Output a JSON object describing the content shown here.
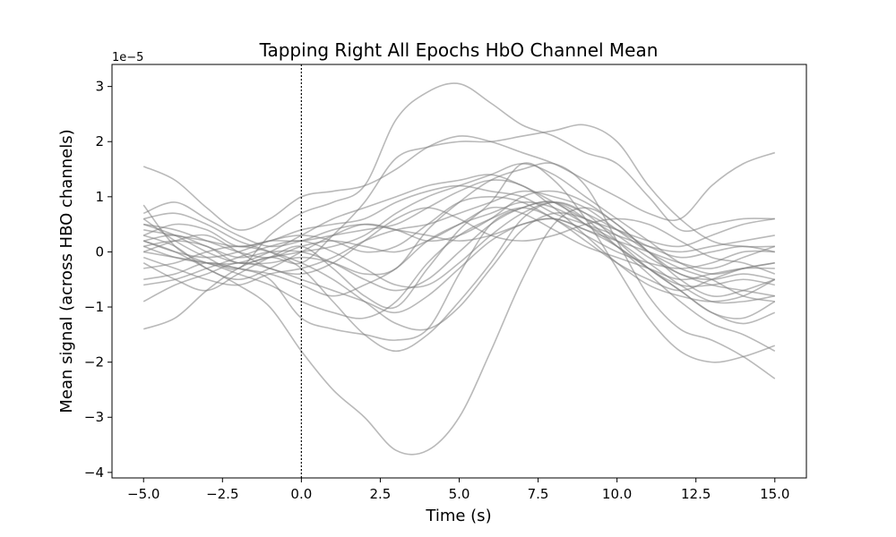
{
  "chart_data": {
    "type": "line",
    "title": "Tapping Right All Epochs HbO Channel Mean",
    "xlabel": "Time (s)",
    "ylabel": "Mean signal (across HBO channels)",
    "y_offset_label": "1e−5",
    "xlim": [
      -6.0,
      16.0
    ],
    "ylim": [
      -4.1,
      3.4
    ],
    "xticks": [
      -5.0,
      -2.5,
      0.0,
      2.5,
      5.0,
      7.5,
      10.0,
      12.5,
      15.0
    ],
    "xtick_labels": [
      "−5.0",
      "−2.5",
      "0.0",
      "2.5",
      "5.0",
      "7.5",
      "10.0",
      "12.5",
      "15.0"
    ],
    "yticks": [
      -4,
      -3,
      -2,
      -1,
      0,
      1,
      2,
      3
    ],
    "ytick_labels": [
      "−4",
      "−3",
      "−2",
      "−1",
      "0",
      "1",
      "2",
      "3"
    ],
    "vline_x": 0.0,
    "line_color": "#808080",
    "line_opacity": 0.55,
    "x": [
      -5,
      -4,
      -3,
      -2,
      -1,
      0,
      1,
      2,
      3,
      4,
      5,
      6,
      7,
      8,
      9,
      10,
      11,
      12,
      13,
      14,
      15
    ],
    "series": [
      {
        "values": [
          1.55,
          1.3,
          0.8,
          0.4,
          0.6,
          1.0,
          1.1,
          1.2,
          1.5,
          1.9,
          2.1,
          2.0,
          1.8,
          1.6,
          1.3,
          1.0,
          0.7,
          0.6,
          1.2,
          1.6,
          1.8
        ]
      },
      {
        "values": [
          0.6,
          0.2,
          -0.1,
          -0.3,
          0.3,
          0.7,
          0.9,
          1.2,
          2.4,
          2.9,
          3.05,
          2.7,
          2.3,
          2.1,
          1.8,
          1.6,
          1.0,
          0.4,
          0.5,
          0.6,
          0.6
        ]
      },
      {
        "values": [
          0.2,
          0.0,
          -0.3,
          -0.6,
          -1.0,
          -1.8,
          -2.5,
          -3.0,
          -3.6,
          -3.6,
          -3.0,
          -1.8,
          -0.5,
          0.5,
          0.8,
          0.5,
          0.0,
          -0.4,
          -0.5,
          -0.4,
          -0.5
        ]
      },
      {
        "values": [
          -1.4,
          -1.2,
          -0.7,
          -0.3,
          -0.1,
          -0.2,
          0.3,
          0.9,
          1.7,
          1.9,
          2.0,
          2.0,
          2.1,
          2.2,
          2.3,
          2.0,
          1.2,
          0.6,
          0.2,
          0.1,
          0.1
        ]
      },
      {
        "values": [
          0.85,
          0.1,
          -0.2,
          -0.3,
          -0.5,
          -1.2,
          -1.4,
          -1.5,
          -1.6,
          -1.4,
          -0.4,
          0.5,
          0.8,
          0.9,
          0.5,
          0.2,
          -0.2,
          -0.6,
          -0.9,
          -0.9,
          -0.8
        ]
      },
      {
        "values": [
          0.5,
          0.3,
          0.0,
          -0.2,
          -0.2,
          -0.1,
          -0.2,
          -0.4,
          -0.3,
          0.4,
          0.9,
          1.3,
          1.5,
          1.6,
          1.2,
          0.2,
          -0.8,
          -1.4,
          -1.6,
          -1.9,
          -2.3
        ]
      },
      {
        "values": [
          -0.2,
          -0.5,
          -0.7,
          -0.4,
          -0.1,
          0.1,
          -0.3,
          -0.8,
          -1.0,
          -0.3,
          0.4,
          0.9,
          1.6,
          1.3,
          0.6,
          -0.3,
          -1.2,
          -1.8,
          -2.0,
          -1.9,
          -1.7
        ]
      },
      {
        "values": [
          0.6,
          0.7,
          0.5,
          0.2,
          0.0,
          -0.3,
          -0.9,
          -1.5,
          -1.8,
          -1.5,
          -0.9,
          -0.2,
          0.6,
          0.9,
          0.7,
          0.2,
          -0.3,
          -0.7,
          -1.1,
          -1.2,
          -0.9
        ]
      },
      {
        "values": [
          0.3,
          0.5,
          0.4,
          0.1,
          0.2,
          0.2,
          0.3,
          0.4,
          0.5,
          0.8,
          1.1,
          1.3,
          1.2,
          0.8,
          0.3,
          -0.2,
          -0.6,
          -0.8,
          -0.9,
          -0.8,
          -0.5
        ]
      },
      {
        "values": [
          0.1,
          0.2,
          0.1,
          -0.2,
          -0.1,
          0.0,
          0.1,
          0.3,
          0.7,
          1.0,
          1.2,
          1.4,
          1.6,
          1.4,
          1.0,
          0.6,
          0.2,
          -0.2,
          -0.4,
          -0.3,
          -0.2
        ]
      },
      {
        "values": [
          -0.5,
          -0.4,
          -0.2,
          -0.3,
          -0.4,
          -0.6,
          -0.8,
          -0.6,
          -0.3,
          0.2,
          0.5,
          0.7,
          0.9,
          0.8,
          0.5,
          0.1,
          -0.3,
          -0.6,
          -0.6,
          -0.5,
          -0.6
        ]
      },
      {
        "values": [
          0.4,
          0.3,
          0.2,
          0.1,
          0.2,
          0.4,
          0.5,
          0.6,
          0.9,
          1.1,
          1.2,
          1.1,
          1.0,
          0.7,
          0.5,
          0.3,
          0.1,
          0.0,
          0.1,
          0.2,
          0.3
        ]
      },
      {
        "values": [
          -0.9,
          -0.6,
          -0.4,
          -0.2,
          -0.3,
          -0.5,
          -0.7,
          -0.9,
          -1.1,
          -0.8,
          -0.3,
          0.2,
          0.5,
          0.6,
          0.4,
          0.1,
          -0.3,
          -0.7,
          -1.1,
          -1.3,
          -1.1
        ]
      },
      {
        "values": [
          0.0,
          -0.1,
          -0.2,
          -0.4,
          -0.6,
          -0.9,
          -1.1,
          -1.2,
          -0.9,
          -0.2,
          0.3,
          0.6,
          0.8,
          0.6,
          0.2,
          -0.2,
          -0.5,
          -0.7,
          -0.5,
          -0.3,
          -0.2
        ]
      },
      {
        "values": [
          0.7,
          0.9,
          0.6,
          0.3,
          0.1,
          0.2,
          0.4,
          0.5,
          0.4,
          0.3,
          0.2,
          0.3,
          0.5,
          0.6,
          0.4,
          0.2,
          0.0,
          -0.2,
          -0.3,
          -0.1,
          0.1
        ]
      },
      {
        "values": [
          -0.3,
          -0.2,
          0.0,
          0.1,
          0.0,
          -0.2,
          -0.5,
          -0.9,
          -1.3,
          -1.4,
          -1.0,
          -0.3,
          0.4,
          0.7,
          0.6,
          0.3,
          -0.1,
          -0.4,
          -0.6,
          -0.7,
          -0.8
        ]
      },
      {
        "values": [
          0.2,
          0.0,
          -0.1,
          0.0,
          0.2,
          0.3,
          0.2,
          0.0,
          0.1,
          0.5,
          0.9,
          1.0,
          0.9,
          0.6,
          0.3,
          0.0,
          -0.2,
          -0.3,
          -0.2,
          0.0,
          0.0
        ]
      },
      {
        "values": [
          0.0,
          0.2,
          0.3,
          0.0,
          -0.3,
          -0.4,
          -0.2,
          0.2,
          0.6,
          0.8,
          0.6,
          0.3,
          0.2,
          0.3,
          0.5,
          0.6,
          0.5,
          0.2,
          -0.1,
          -0.2,
          -0.4
        ]
      },
      {
        "values": [
          0.3,
          0.1,
          -0.3,
          -0.5,
          -0.3,
          0.0,
          0.3,
          0.5,
          0.4,
          0.2,
          0.3,
          0.6,
          1.0,
          1.1,
          0.9,
          0.5,
          0.0,
          -0.5,
          -0.8,
          -0.7,
          -0.5
        ]
      },
      {
        "values": [
          -0.1,
          -0.3,
          -0.5,
          -0.6,
          -0.4,
          -0.3,
          -0.1,
          0.2,
          0.4,
          0.5,
          0.7,
          0.9,
          1.1,
          1.0,
          0.8,
          0.4,
          0.0,
          -0.3,
          -0.5,
          -0.8,
          -0.9
        ]
      },
      {
        "values": [
          0.5,
          0.4,
          0.2,
          0.0,
          -0.1,
          0.1,
          0.2,
          0.1,
          0.0,
          0.2,
          0.5,
          0.8,
          0.7,
          0.4,
          0.1,
          -0.1,
          -0.3,
          -0.5,
          -0.4,
          -0.3,
          -0.3
        ]
      },
      {
        "values": [
          -0.6,
          -0.5,
          -0.3,
          -0.1,
          0.1,
          0.2,
          0.0,
          -0.3,
          -0.6,
          -0.6,
          -0.2,
          0.3,
          0.7,
          0.9,
          0.7,
          0.4,
          0.1,
          -0.1,
          0.0,
          0.1,
          0.0
        ]
      },
      {
        "values": [
          0.2,
          0.3,
          0.1,
          -0.1,
          0.0,
          0.0,
          -0.2,
          -0.5,
          -0.7,
          -0.5,
          0.0,
          0.5,
          0.8,
          0.9,
          0.6,
          0.1,
          -0.4,
          -0.9,
          -1.3,
          -1.5,
          -1.8
        ]
      },
      {
        "values": [
          0.1,
          -0.1,
          -0.2,
          -0.2,
          0.0,
          0.3,
          0.6,
          0.8,
          1.0,
          1.2,
          1.3,
          1.4,
          1.2,
          0.9,
          0.6,
          0.4,
          0.2,
          0.1,
          0.3,
          0.5,
          0.6
        ]
      }
    ]
  }
}
